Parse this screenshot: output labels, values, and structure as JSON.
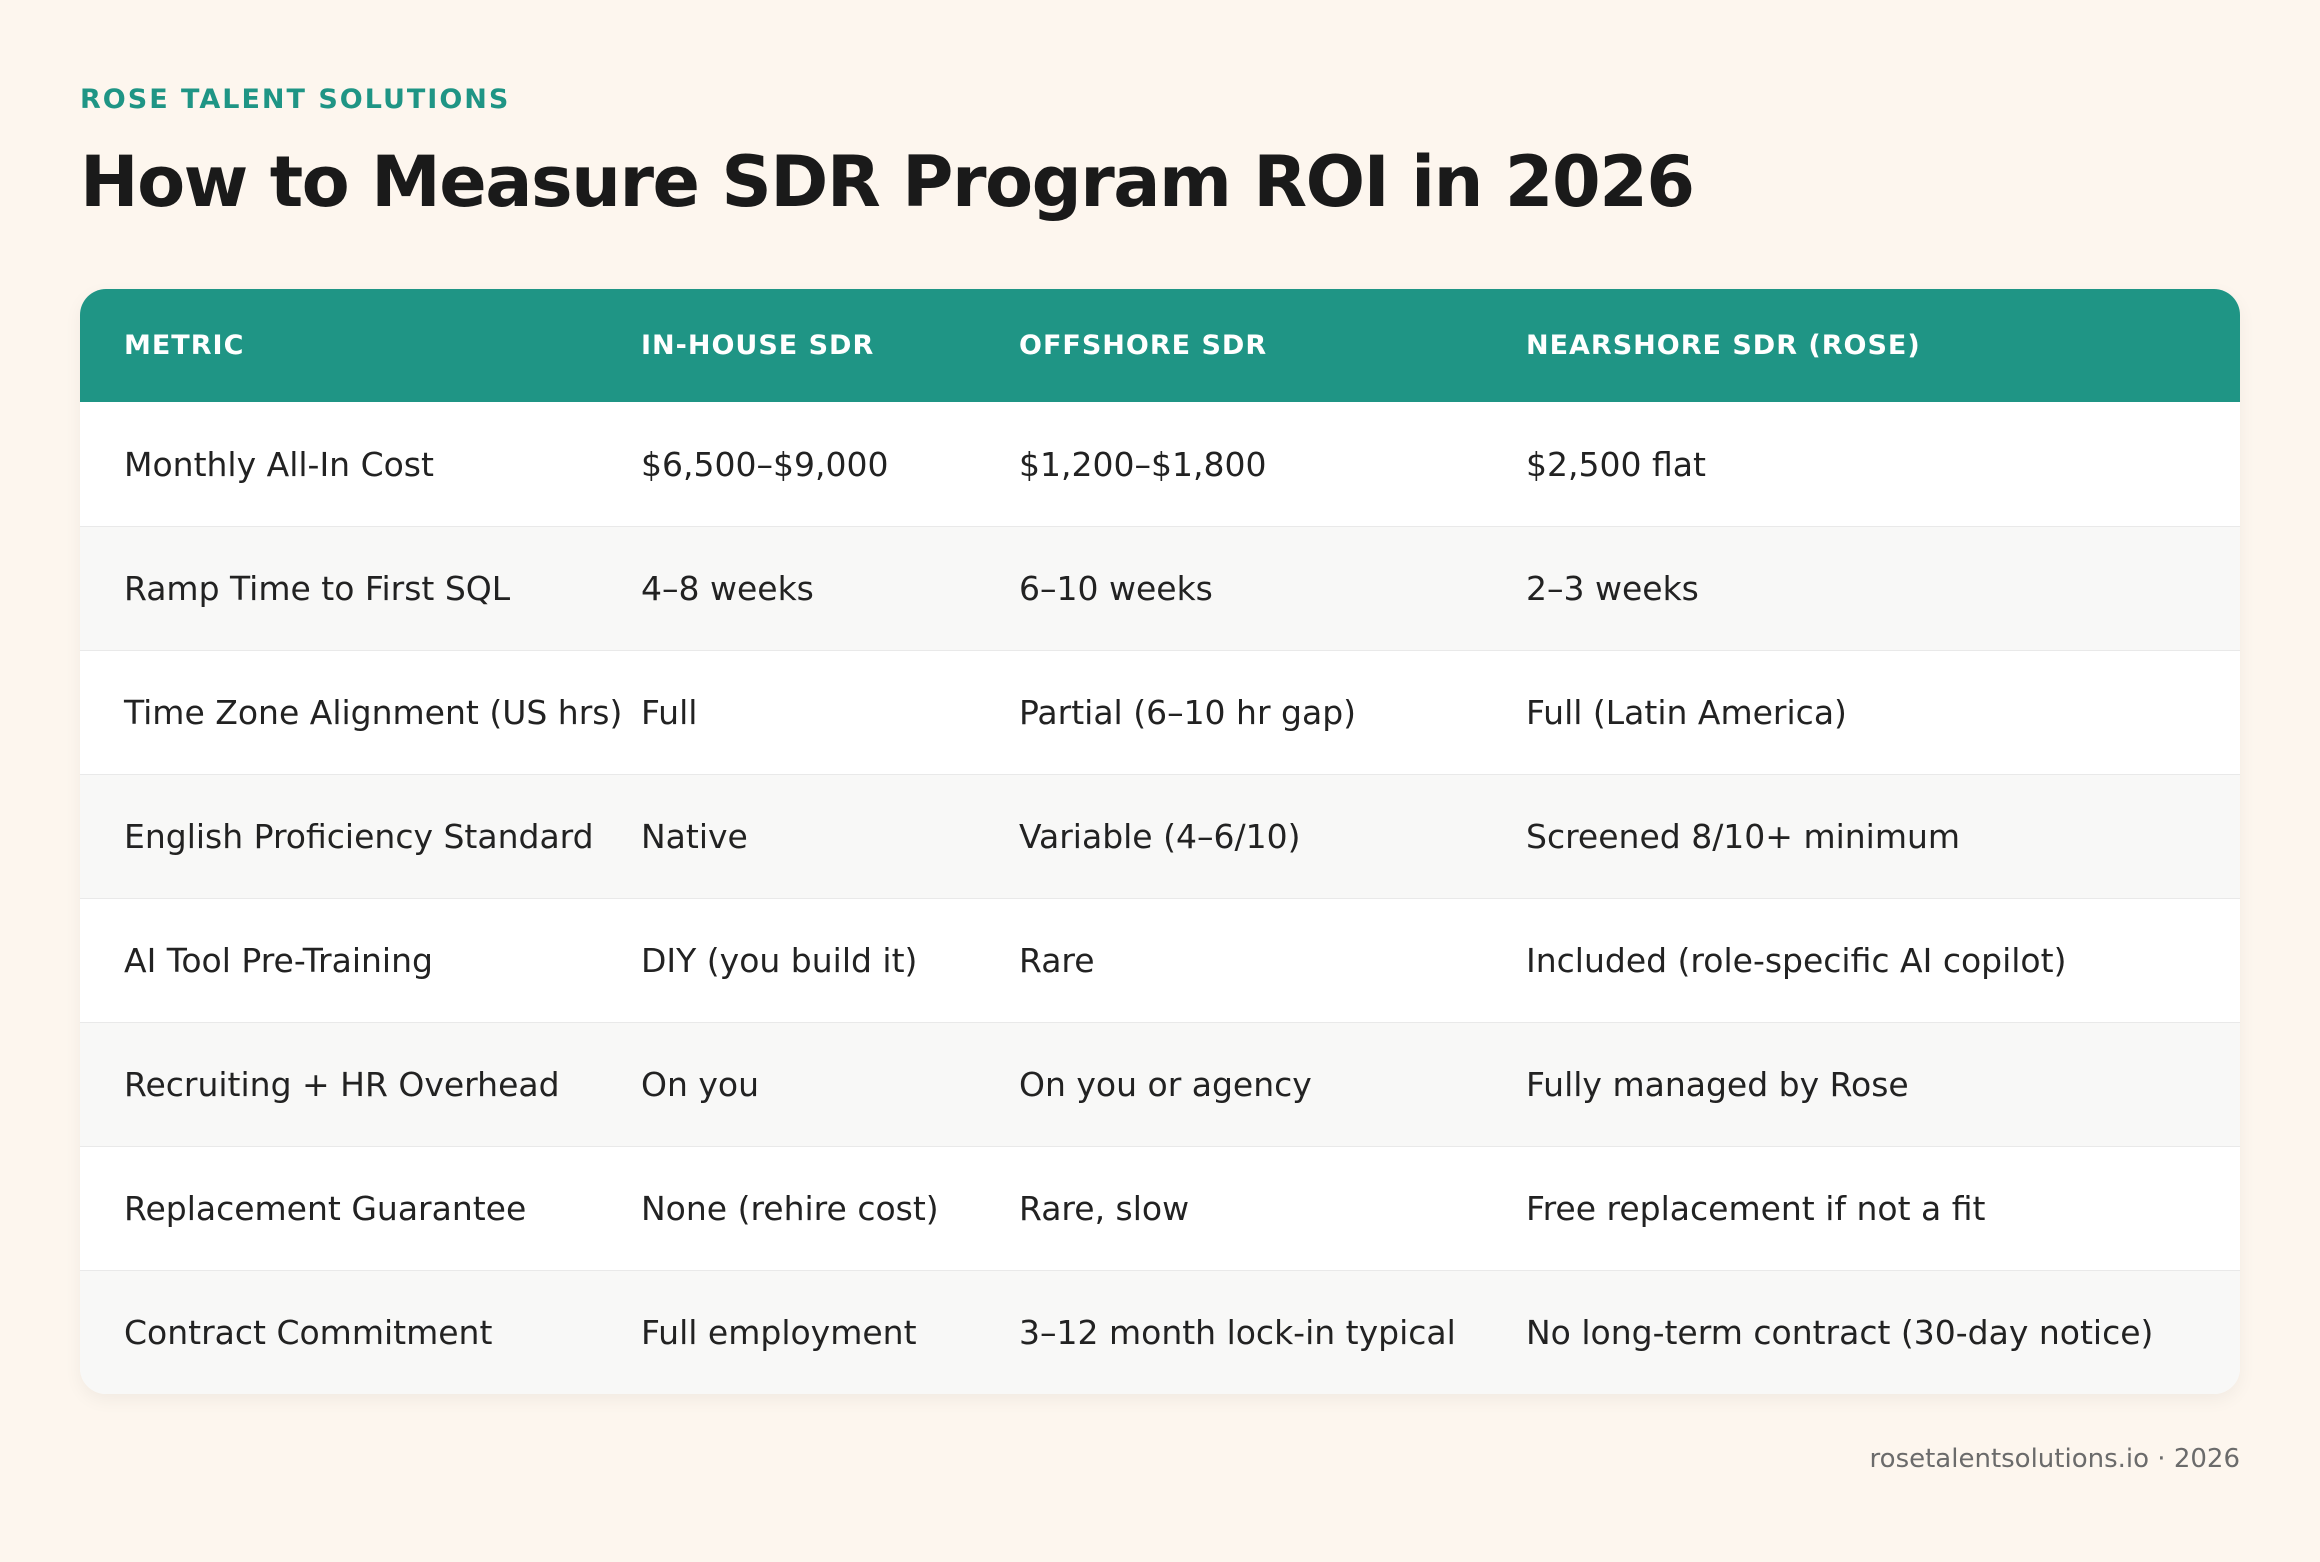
{
  "header": {
    "brand": "ROSE TALENT SOLUTIONS",
    "title": "How to Measure SDR Program ROI in 2026"
  },
  "table": {
    "columns": [
      "METRIC",
      "IN-HOUSE SDR",
      "OFFSHORE SDR",
      "NEARSHORE SDR (ROSE)"
    ],
    "rows": [
      [
        "Monthly All-In Cost",
        "$6,500–$9,000",
        "$1,200–$1,800",
        "$2,500 flat"
      ],
      [
        "Ramp Time to First SQL",
        "4–8 weeks",
        "6–10 weeks",
        "2–3 weeks"
      ],
      [
        "Time Zone Alignment (US hrs)",
        "Full",
        "Partial (6–10 hr gap)",
        "Full (Latin America)"
      ],
      [
        "English Proficiency Standard",
        "Native",
        "Variable (4–6/10)",
        "Screened 8/10+ minimum"
      ],
      [
        "AI Tool Pre-Training",
        "DIY (you build it)",
        "Rare",
        "Included (role-specific AI copilot)"
      ],
      [
        "Recruiting + HR Overhead",
        "On you",
        "On you or agency",
        "Fully managed by Rose"
      ],
      [
        "Replacement Guarantee",
        "None (rehire cost)",
        "Rare, slow",
        "Free replacement if not a fit"
      ],
      [
        "Contract Commitment",
        "Full employment",
        "3–12 month lock-in typical",
        "No long-term contract (30-day notice)"
      ]
    ]
  },
  "footer": {
    "text": "rosetalentsolutions.io · 2026"
  },
  "colors": {
    "accent": "#1f9585",
    "background": "#fdf6ee",
    "row_alt": "#f8f8f7"
  }
}
